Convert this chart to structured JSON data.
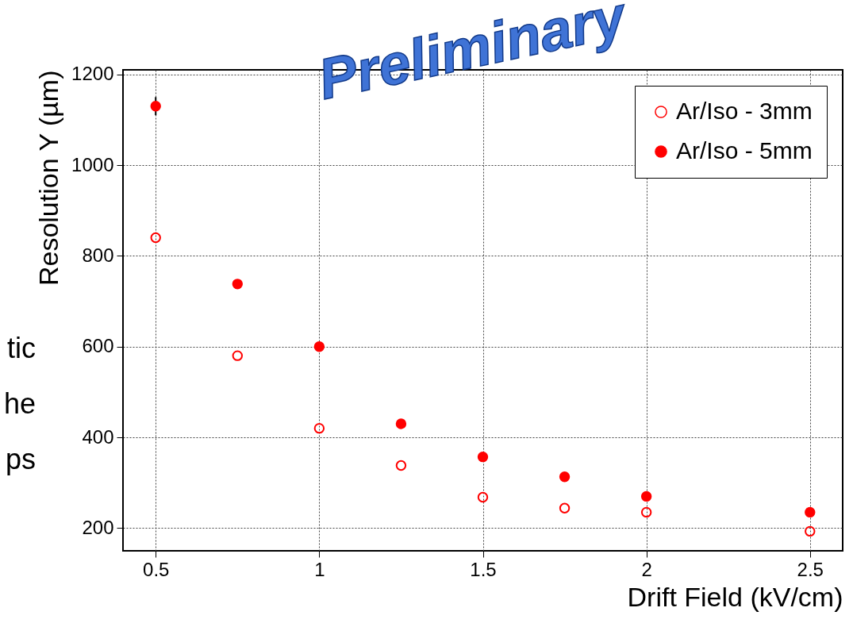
{
  "chart_data": {
    "type": "scatter",
    "xlabel": "Drift Field (kV/cm)",
    "ylabel": "Resolution Y (µm)",
    "x": [
      0.5,
      0.75,
      1.0,
      1.25,
      1.5,
      1.75,
      2.0,
      2.5
    ],
    "series": [
      {
        "name": "Ar/Iso - 3mm",
        "color": "#ff0000",
        "marker": "open circle",
        "values": [
          840,
          580,
          420,
          338,
          268,
          244,
          235,
          193
        ]
      },
      {
        "name": "Ar/Iso - 5mm",
        "color": "#ff0000",
        "values": [
          1130,
          738,
          600,
          430,
          357,
          313,
          270,
          235
        ],
        "errors": [
          20,
          null,
          null,
          null,
          null,
          null,
          null,
          null
        ]
      }
    ],
    "xlim": [
      0.4,
      2.6
    ],
    "xticks": [
      0.5,
      {
        "value": 1,
        "label": "1"
      },
      1.5,
      {
        "value": 2,
        "label": "2"
      },
      2.5
    ],
    "ylim": [
      150,
      1210
    ],
    "yticks": [
      200,
      400,
      600,
      800,
      {
        "value": 1000,
        "label": "1000"
      },
      {
        "value": 1200,
        "label": "1200"
      }
    ],
    "grid": true,
    "legend": "top right",
    "marker": "circle",
    "annotations": [
      "Preliminary",
      "tic",
      "he",
      "ps"
    ]
  }
}
